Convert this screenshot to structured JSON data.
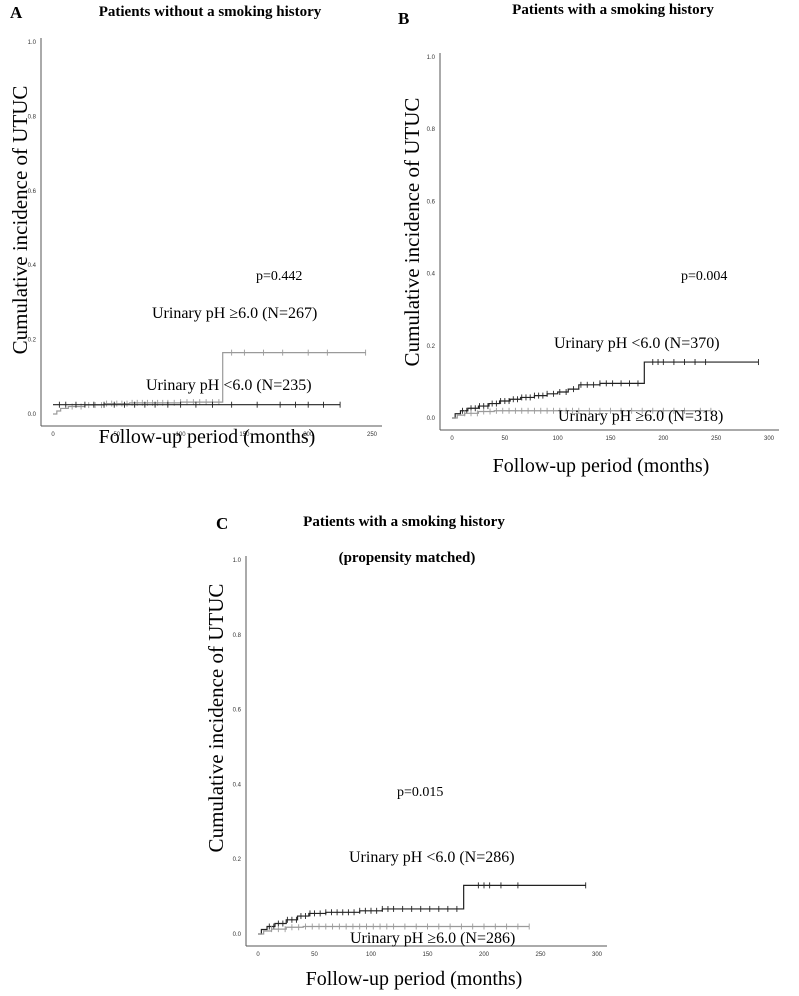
{
  "chart_data": [
    {
      "type": "line",
      "panel_label": "A",
      "title": "Patients without a smoking history",
      "title_line2": "",
      "xlabel": "Follow-up period (months)",
      "ylabel": "Cumulative incidence of UTUC",
      "xlim": [
        0,
        250
      ],
      "ylim": [
        0,
        1.0
      ],
      "xticks": [
        0,
        50,
        100,
        150,
        200,
        250
      ],
      "yticks": [
        0.0,
        0.2,
        0.4,
        0.6,
        0.8,
        1.0
      ],
      "p_value": "p=0.442",
      "series": [
        {
          "name": "Urinary  pH ≥6.0 (N=267)",
          "color": "#9a9a9a",
          "steps": [
            [
              0,
              0
            ],
            [
              3,
              0.008
            ],
            [
              6,
              0.015
            ],
            [
              12,
              0.02
            ],
            [
              25,
              0.024
            ],
            [
              40,
              0.028
            ],
            [
              60,
              0.03
            ],
            [
              100,
              0.032
            ],
            [
              133,
              0.032
            ],
            [
              133,
              0.165
            ],
            [
              245,
              0.165
            ]
          ],
          "censored": [
            15,
            22,
            28,
            33,
            38,
            42,
            46,
            50,
            54,
            58,
            62,
            66,
            70,
            74,
            78,
            82,
            86,
            90,
            95,
            100,
            105,
            110,
            115,
            120,
            125,
            130,
            140,
            150,
            165,
            180,
            200,
            215,
            245
          ]
        },
        {
          "name": "Urinary  pH <6.0 (N=235)",
          "color": "#222222",
          "steps": [
            [
              0,
              0.025
            ],
            [
              225,
              0.025
            ]
          ],
          "censored": [
            5,
            10,
            18,
            25,
            32,
            40,
            48,
            56,
            64,
            72,
            80,
            90,
            100,
            112,
            125,
            140,
            160,
            178,
            190,
            200,
            212,
            225
          ]
        }
      ]
    },
    {
      "type": "line",
      "panel_label": "B",
      "title": "Patients with a smoking history",
      "title_line2": "",
      "xlabel": "Follow-up period (months)",
      "ylabel": "Cumulative incidence of UTUC",
      "xlim": [
        0,
        300
      ],
      "ylim": [
        0,
        1.0
      ],
      "xticks": [
        0,
        50,
        100,
        150,
        200,
        250,
        300
      ],
      "yticks": [
        0.0,
        0.2,
        0.4,
        0.6,
        0.8,
        1.0
      ],
      "p_value": "p=0.004",
      "series": [
        {
          "name": "Urinary  pH <6.0 (N=370)",
          "color": "#222222",
          "steps": [
            [
              0,
              0
            ],
            [
              3,
              0.012
            ],
            [
              8,
              0.02
            ],
            [
              15,
              0.027
            ],
            [
              25,
              0.033
            ],
            [
              35,
              0.04
            ],
            [
              45,
              0.047
            ],
            [
              55,
              0.052
            ],
            [
              65,
              0.057
            ],
            [
              78,
              0.062
            ],
            [
              90,
              0.067
            ],
            [
              100,
              0.072
            ],
            [
              110,
              0.08
            ],
            [
              120,
              0.092
            ],
            [
              140,
              0.096
            ],
            [
              182,
              0.096
            ],
            [
              182,
              0.155
            ],
            [
              290,
              0.155
            ]
          ],
          "censored": [
            10,
            14,
            18,
            22,
            26,
            30,
            34,
            38,
            42,
            46,
            50,
            54,
            58,
            62,
            66,
            70,
            74,
            78,
            82,
            86,
            90,
            96,
            102,
            108,
            115,
            122,
            128,
            134,
            140,
            146,
            152,
            160,
            168,
            176,
            190,
            195,
            200,
            210,
            220,
            230,
            240,
            290
          ]
        },
        {
          "name": "Urinary  pH ≥6.0 (N=318)",
          "color": "#9a9a9a",
          "steps": [
            [
              0,
              0
            ],
            [
              5,
              0.008
            ],
            [
              12,
              0.013
            ],
            [
              25,
              0.018
            ],
            [
              40,
              0.02
            ],
            [
              245,
              0.02
            ]
          ],
          "censored": [
            12,
            18,
            24,
            30,
            36,
            42,
            48,
            54,
            60,
            66,
            72,
            78,
            84,
            90,
            96,
            102,
            108,
            114,
            120,
            130,
            140,
            150,
            160,
            170,
            180,
            190,
            200,
            210,
            220,
            235,
            245
          ]
        }
      ]
    },
    {
      "type": "line",
      "panel_label": "C",
      "title": "Patients with a smoking history",
      "title_line2": "(propensity  matched)",
      "xlabel": "Follow-up period (months)",
      "ylabel": "Cumulative incidence of UTUC",
      "xlim": [
        0,
        300
      ],
      "ylim": [
        0,
        1.0
      ],
      "xticks": [
        0,
        50,
        100,
        150,
        200,
        250,
        300
      ],
      "yticks": [
        0.0,
        0.2,
        0.4,
        0.6,
        0.8,
        1.0
      ],
      "p_value": "p=0.015",
      "series": [
        {
          "name": "Urinary  pH <6.0 (N=286)",
          "color": "#222222",
          "steps": [
            [
              0,
              0
            ],
            [
              3,
              0.012
            ],
            [
              8,
              0.02
            ],
            [
              15,
              0.028
            ],
            [
              25,
              0.038
            ],
            [
              35,
              0.048
            ],
            [
              45,
              0.055
            ],
            [
              60,
              0.058
            ],
            [
              90,
              0.062
            ],
            [
              110,
              0.067
            ],
            [
              182,
              0.067
            ],
            [
              182,
              0.13
            ],
            [
              290,
              0.13
            ]
          ],
          "censored": [
            10,
            14,
            18,
            22,
            26,
            30,
            34,
            38,
            42,
            46,
            50,
            55,
            60,
            65,
            70,
            75,
            80,
            85,
            90,
            95,
            100,
            105,
            110,
            115,
            120,
            128,
            136,
            144,
            152,
            160,
            168,
            176,
            195,
            200,
            205,
            215,
            230,
            290
          ]
        },
        {
          "name": "Urinary  pH ≥6.0 (N=286)",
          "color": "#9a9a9a",
          "steps": [
            [
              0,
              0
            ],
            [
              5,
              0.008
            ],
            [
              12,
              0.013
            ],
            [
              25,
              0.018
            ],
            [
              40,
              0.02
            ],
            [
              240,
              0.02
            ]
          ],
          "censored": [
            12,
            18,
            24,
            30,
            36,
            42,
            48,
            54,
            60,
            66,
            72,
            78,
            84,
            90,
            96,
            102,
            108,
            114,
            120,
            130,
            140,
            150,
            160,
            170,
            180,
            190,
            200,
            210,
            220,
            230,
            240
          ]
        }
      ]
    }
  ]
}
